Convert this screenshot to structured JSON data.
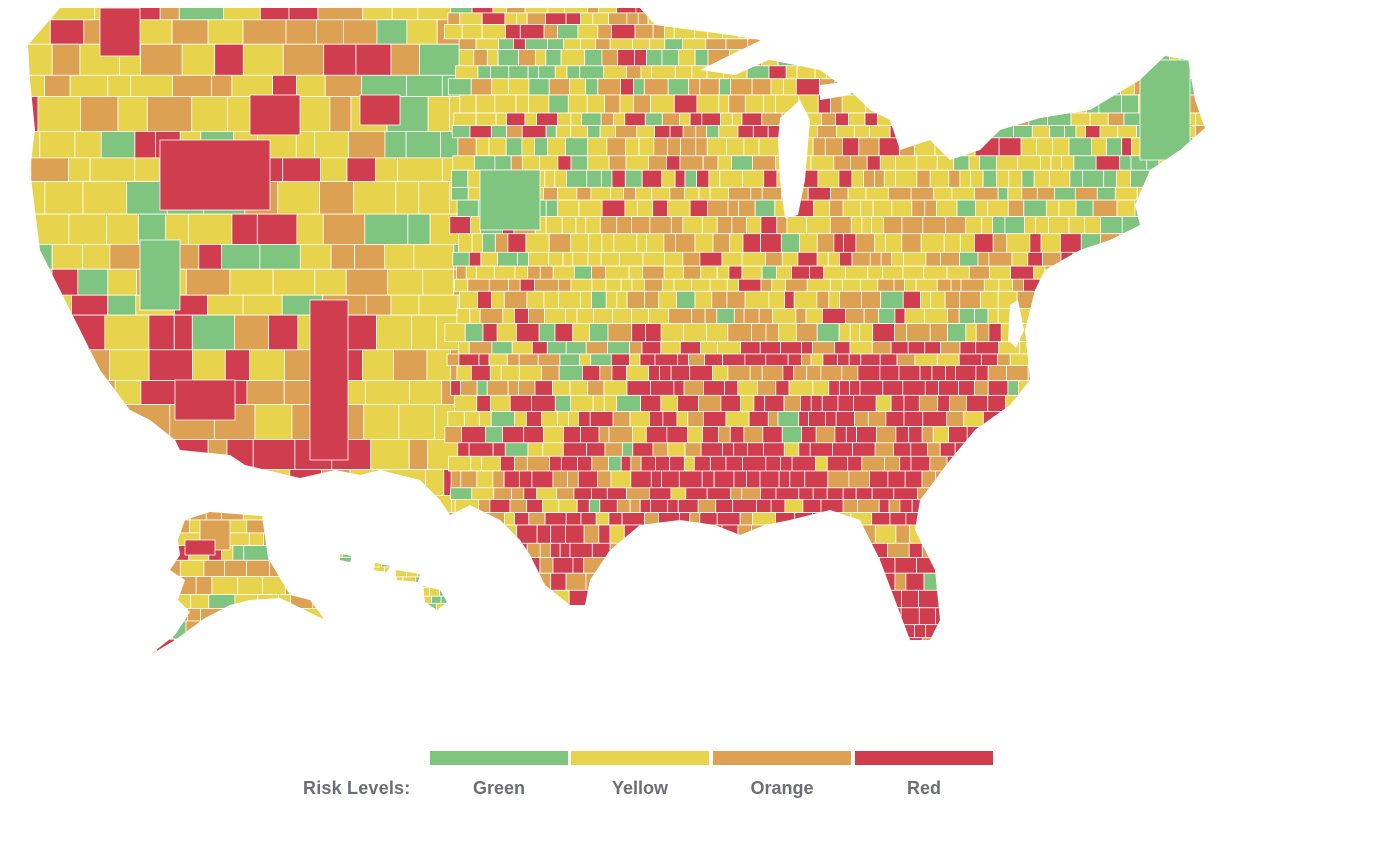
{
  "legend": {
    "title": "Risk Levels:",
    "items": [
      {
        "label": "Green",
        "color": "#7fc47f"
      },
      {
        "label": "Yellow",
        "color": "#e8d34d"
      },
      {
        "label": "Orange",
        "color": "#dca153"
      },
      {
        "label": "Red",
        "color": "#cf3d4e"
      }
    ]
  },
  "map": {
    "name": "US county risk level map",
    "colors": {
      "green": "#7fc47f",
      "yellow": "#e8d34d",
      "orange": "#dca153",
      "red": "#cf3d4e",
      "background": "#ffffff"
    }
  }
}
